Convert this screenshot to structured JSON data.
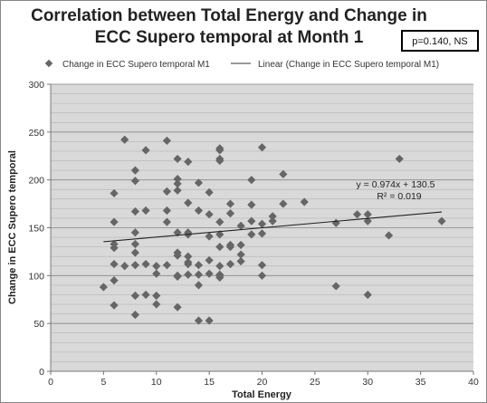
{
  "chart_data": {
    "type": "scatter",
    "title_lines": [
      "Correlation between Total Energy and Change in",
      "ECC Supero temporal at Month 1"
    ],
    "p_value_label": "p=0.140, NS",
    "xlabel": "Total Energy",
    "ylabel": "Change in ECC Supero temporal",
    "xlim": [
      0,
      40
    ],
    "ylim": [
      0,
      300
    ],
    "x_ticks": [
      "0",
      "5",
      "10",
      "15",
      "20",
      "25",
      "30",
      "35",
      "40"
    ],
    "y_ticks": [
      "0",
      "50",
      "100",
      "150",
      "200",
      "250",
      "300"
    ],
    "grid": true,
    "legend_position": "top",
    "legend": {
      "marker_label": "Change in ECC Supero temporal M1",
      "line_label": "Linear (Change in ECC Supero temporal M1)"
    },
    "trendline": {
      "slope": 0.974,
      "intercept": 130.5,
      "equation_label": "y = 0.974x + 130.5",
      "r2_label": "R² = 0.019"
    },
    "series": [
      {
        "name": "Change in ECC Supero temporal M1",
        "color": "#666666",
        "x": [
          5,
          6,
          6,
          6,
          6,
          6,
          6,
          6,
          7,
          7,
          8,
          8,
          8,
          8,
          8,
          8,
          8,
          8,
          8,
          9,
          9,
          9,
          9,
          10,
          10,
          10,
          10,
          11,
          11,
          11,
          11,
          11,
          12,
          12,
          12,
          12,
          12,
          12,
          12,
          12,
          12,
          12,
          13,
          13,
          13,
          13,
          13,
          13,
          13,
          13,
          14,
          14,
          14,
          14,
          14,
          14,
          15,
          15,
          15,
          15,
          15,
          15,
          16,
          16,
          16,
          16,
          16,
          16,
          16,
          16,
          16,
          16,
          16,
          17,
          17,
          17,
          17,
          17,
          18,
          18,
          18,
          18,
          19,
          19,
          19,
          19,
          20,
          20,
          20,
          20,
          20,
          21,
          21,
          22,
          22,
          24,
          27,
          27,
          29,
          30,
          30,
          30,
          32,
          33,
          37
        ],
        "y": [
          88,
          186,
          156,
          133,
          129,
          112,
          95,
          69,
          242,
          110,
          210,
          199,
          167,
          145,
          133,
          124,
          111,
          79,
          59,
          231,
          168,
          112,
          80,
          102,
          79,
          70,
          110,
          241,
          188,
          168,
          156,
          111,
          222,
          201,
          196,
          189,
          145,
          124,
          121,
          99,
          100,
          67,
          219,
          176,
          143,
          145,
          120,
          114,
          101,
          112,
          197,
          168,
          111,
          90,
          53,
          101,
          187,
          164,
          116,
          102,
          53,
          141,
          233,
          231,
          222,
          220,
          156,
          143,
          130,
          110,
          101,
          100,
          98,
          175,
          165,
          132,
          130,
          112,
          152,
          132,
          115,
          122,
          200,
          174,
          157,
          143,
          234,
          154,
          144,
          111,
          100,
          162,
          157,
          206,
          175,
          177,
          155,
          89,
          164,
          164,
          157,
          80,
          142,
          222,
          157
        ]
      }
    ]
  }
}
